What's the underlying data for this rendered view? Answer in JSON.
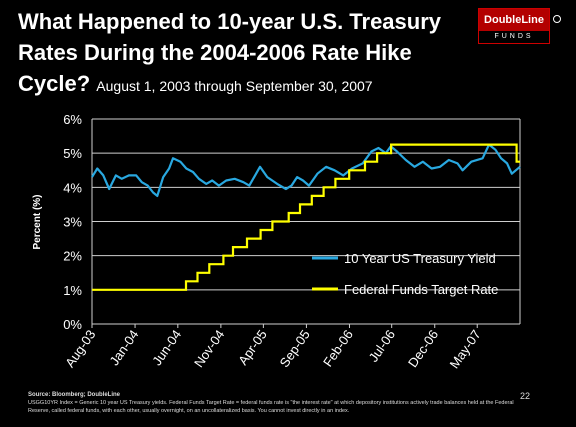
{
  "header": {
    "title": "What Happened to 10-year U.S. Treasury Rates During the 2004-2006 Rate Hike Cycle?",
    "subtitle": "August 1, 2003 through September 30, 2007"
  },
  "logo": {
    "name": "DoubleLine",
    "tagline": "FUNDS"
  },
  "footer": {
    "source": "Source: Bloomberg; DoubleLine",
    "note": "USGG10YR Index = Generic 10 year US Treasury yields. Federal Funds Target Rate = federal funds rate is \"the interest rate\" at which depository institutions actively trade balances held at the Federal Reserve, called federal funds, with each other, usually overnight, on an uncollateralized basis. You cannot invest directly in an index."
  },
  "page_number": "22",
  "colors": {
    "treasury": "#29a8e0",
    "fed": "#ffff00",
    "grid": "#cfcfcf"
  },
  "chart_data": {
    "type": "line",
    "ylabel": "Percent (%)",
    "ylim": [
      0,
      6
    ],
    "yticks": [
      "0%",
      "1%",
      "2%",
      "3%",
      "4%",
      "5%",
      "6%"
    ],
    "xlim": [
      "2003-08-01",
      "2007-09-30"
    ],
    "xticks": [
      {
        "label": "Aug-03",
        "date": "2003-08-01"
      },
      {
        "label": "Jan-04",
        "date": "2004-01-01"
      },
      {
        "label": "Jun-04",
        "date": "2004-06-01"
      },
      {
        "label": "Nov-04",
        "date": "2004-11-01"
      },
      {
        "label": "Apr-05",
        "date": "2005-04-01"
      },
      {
        "label": "Sep-05",
        "date": "2005-09-01"
      },
      {
        "label": "Feb-06",
        "date": "2006-02-01"
      },
      {
        "label": "Jul-06",
        "date": "2006-07-01"
      },
      {
        "label": "Dec-06",
        "date": "2006-12-01"
      },
      {
        "label": "May-07",
        "date": "2007-05-01"
      }
    ],
    "grid": true,
    "legend": "center-right",
    "series": [
      {
        "name": "10 Year US Treasury Yield",
        "points": [
          [
            "2003-08-01",
            4.3
          ],
          [
            "2003-08-20",
            4.55
          ],
          [
            "2003-09-10",
            4.35
          ],
          [
            "2003-10-01",
            3.95
          ],
          [
            "2003-10-25",
            4.35
          ],
          [
            "2003-11-15",
            4.25
          ],
          [
            "2003-12-10",
            4.35
          ],
          [
            "2004-01-05",
            4.35
          ],
          [
            "2004-01-25",
            4.15
          ],
          [
            "2004-02-15",
            4.05
          ],
          [
            "2004-03-05",
            3.85
          ],
          [
            "2004-03-20",
            3.75
          ],
          [
            "2004-04-10",
            4.3
          ],
          [
            "2004-05-01",
            4.55
          ],
          [
            "2004-05-15",
            4.85
          ],
          [
            "2004-06-10",
            4.75
          ],
          [
            "2004-07-01",
            4.55
          ],
          [
            "2004-07-25",
            4.45
          ],
          [
            "2004-08-15",
            4.25
          ],
          [
            "2004-09-10",
            4.1
          ],
          [
            "2004-10-01",
            4.2
          ],
          [
            "2004-10-25",
            4.05
          ],
          [
            "2004-11-20",
            4.2
          ],
          [
            "2004-12-20",
            4.25
          ],
          [
            "2005-01-20",
            4.15
          ],
          [
            "2005-02-10",
            4.05
          ],
          [
            "2005-03-20",
            4.6
          ],
          [
            "2005-04-15",
            4.3
          ],
          [
            "2005-05-20",
            4.1
          ],
          [
            "2005-06-20",
            3.95
          ],
          [
            "2005-07-10",
            4.05
          ],
          [
            "2005-07-30",
            4.3
          ],
          [
            "2005-08-20",
            4.2
          ],
          [
            "2005-09-10",
            4.05
          ],
          [
            "2005-10-10",
            4.4
          ],
          [
            "2005-11-10",
            4.6
          ],
          [
            "2005-12-10",
            4.5
          ],
          [
            "2006-01-10",
            4.35
          ],
          [
            "2006-02-10",
            4.55
          ],
          [
            "2006-03-20",
            4.7
          ],
          [
            "2006-04-20",
            5.05
          ],
          [
            "2006-05-15",
            5.15
          ],
          [
            "2006-06-10",
            5.0
          ],
          [
            "2006-06-28",
            5.2
          ],
          [
            "2006-07-20",
            5.05
          ],
          [
            "2006-08-20",
            4.8
          ],
          [
            "2006-09-20",
            4.6
          ],
          [
            "2006-10-20",
            4.75
          ],
          [
            "2006-11-20",
            4.55
          ],
          [
            "2006-12-20",
            4.6
          ],
          [
            "2007-01-20",
            4.8
          ],
          [
            "2007-02-20",
            4.7
          ],
          [
            "2007-03-10",
            4.5
          ],
          [
            "2007-04-10",
            4.75
          ],
          [
            "2007-05-20",
            4.85
          ],
          [
            "2007-06-12",
            5.25
          ],
          [
            "2007-07-05",
            5.1
          ],
          [
            "2007-07-25",
            4.85
          ],
          [
            "2007-08-15",
            4.7
          ],
          [
            "2007-09-01",
            4.4
          ],
          [
            "2007-09-15",
            4.5
          ],
          [
            "2007-09-30",
            4.6
          ]
        ]
      },
      {
        "name": "Federal Funds Target Rate",
        "steps": [
          [
            "2003-08-01",
            1.0
          ],
          [
            "2004-06-30",
            1.25
          ],
          [
            "2004-08-10",
            1.5
          ],
          [
            "2004-09-21",
            1.75
          ],
          [
            "2004-11-10",
            2.0
          ],
          [
            "2004-12-14",
            2.25
          ],
          [
            "2005-02-02",
            2.5
          ],
          [
            "2005-03-22",
            2.75
          ],
          [
            "2005-05-03",
            3.0
          ],
          [
            "2005-06-30",
            3.25
          ],
          [
            "2005-08-09",
            3.5
          ],
          [
            "2005-09-20",
            3.75
          ],
          [
            "2005-11-01",
            4.0
          ],
          [
            "2005-12-13",
            4.25
          ],
          [
            "2006-01-31",
            4.5
          ],
          [
            "2006-03-28",
            4.75
          ],
          [
            "2006-05-10",
            5.0
          ],
          [
            "2006-06-29",
            5.25
          ],
          [
            "2007-09-18",
            4.75
          ],
          [
            "2007-09-30",
            4.75
          ]
        ]
      }
    ]
  }
}
